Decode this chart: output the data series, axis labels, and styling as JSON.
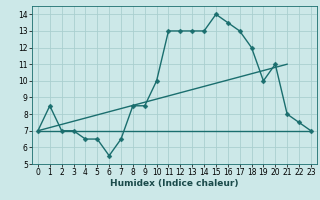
{
  "title": "",
  "xlabel": "Humidex (Indice chaleur)",
  "ylabel": "",
  "bg_color": "#cce8e8",
  "line_color": "#1a6e6e",
  "grid_color": "#aacfcf",
  "xlim": [
    -0.5,
    23.5
  ],
  "ylim": [
    5,
    14.5
  ],
  "yticks": [
    5,
    6,
    7,
    8,
    9,
    10,
    11,
    12,
    13,
    14
  ],
  "xticks": [
    0,
    1,
    2,
    3,
    4,
    5,
    6,
    7,
    8,
    9,
    10,
    11,
    12,
    13,
    14,
    15,
    16,
    17,
    18,
    19,
    20,
    21,
    22,
    23
  ],
  "main_x": [
    0,
    1,
    2,
    3,
    4,
    5,
    6,
    7,
    8,
    9,
    10,
    11,
    12,
    13,
    14,
    15,
    16,
    17,
    18,
    19,
    20,
    21,
    22,
    23
  ],
  "main_y": [
    7.0,
    8.5,
    7.0,
    7.0,
    6.5,
    6.5,
    5.5,
    6.5,
    8.5,
    8.5,
    10.0,
    13.0,
    13.0,
    13.0,
    13.0,
    14.0,
    13.5,
    13.0,
    12.0,
    10.0,
    11.0,
    8.0,
    7.5,
    7.0
  ],
  "upper_line_x": [
    0,
    21
  ],
  "upper_line_y": [
    7.0,
    11.0
  ],
  "lower_line_x": [
    0,
    23
  ],
  "lower_line_y": [
    7.0,
    7.0
  ],
  "marker_size": 2.5,
  "line_width": 1.0,
  "tick_fontsize": 5.5,
  "xlabel_fontsize": 6.5
}
